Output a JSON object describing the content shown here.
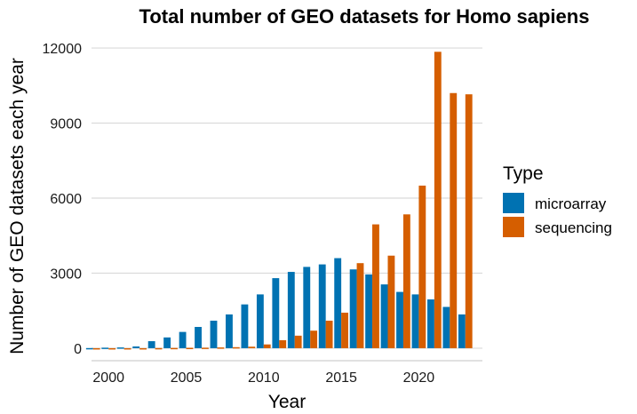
{
  "chart_data": {
    "type": "bar",
    "title": "Total number of GEO datasets for Homo sapiens",
    "xlabel": "Year",
    "ylabel": "Number of GEO datasets each year",
    "x": [
      1999,
      2000,
      2001,
      2002,
      2003,
      2004,
      2005,
      2006,
      2007,
      2008,
      2009,
      2010,
      2011,
      2012,
      2013,
      2014,
      2015,
      2016,
      2017,
      2018,
      2019,
      2020,
      2021,
      2022,
      2023
    ],
    "series": [
      {
        "name": "microarray",
        "color": "#0072B2",
        "values": [
          5,
          20,
          30,
          70,
          280,
          430,
          650,
          850,
          1100,
          1350,
          1750,
          2150,
          2800,
          3050,
          3250,
          3350,
          3600,
          3150,
          2950,
          2550,
          2250,
          2150,
          1950,
          1650,
          1350
        ]
      },
      {
        "name": "sequencing",
        "color": "#D55E00",
        "values": [
          0,
          0,
          0,
          0,
          5,
          10,
          15,
          20,
          30,
          40,
          60,
          150,
          320,
          500,
          700,
          1100,
          1420,
          3400,
          4950,
          3700,
          5350,
          6500,
          11850,
          10200,
          10150
        ]
      }
    ],
    "xticks": [
      "2000",
      "2005",
      "2010",
      "2015",
      "2020"
    ],
    "xtick_values": [
      2000,
      2005,
      2010,
      2015,
      2020
    ],
    "yticks": [
      "0",
      "3000",
      "6000",
      "9000",
      "12000"
    ],
    "ytick_values": [
      0,
      3000,
      6000,
      9000,
      12000
    ],
    "ylim": [
      -500,
      12500
    ],
    "xlim": [
      1998.9,
      2024.1
    ],
    "grid": "horizontal",
    "legend": {
      "title": "Type",
      "placement": "right"
    }
  }
}
